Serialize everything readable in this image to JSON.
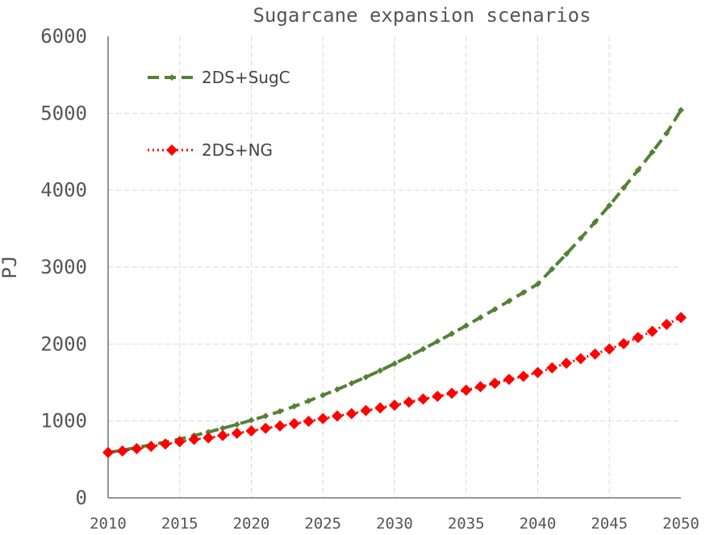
{
  "chart_data": {
    "type": "line",
    "title": "Sugarcane expansion scenarios",
    "xlabel": "",
    "ylabel": "PJ",
    "xlim": [
      2010,
      2050
    ],
    "ylim": [
      0,
      6000
    ],
    "xticks": [
      2010,
      2015,
      2020,
      2025,
      2030,
      2035,
      2040,
      2045,
      2050
    ],
    "yticks": [
      0,
      1000,
      2000,
      3000,
      4000,
      5000,
      6000
    ],
    "grid": true,
    "legend_position": "top-left",
    "x": [
      2010,
      2011,
      2012,
      2013,
      2014,
      2015,
      2016,
      2017,
      2018,
      2019,
      2020,
      2021,
      2022,
      2023,
      2024,
      2025,
      2026,
      2027,
      2028,
      2029,
      2030,
      2031,
      2032,
      2033,
      2034,
      2035,
      2036,
      2037,
      2038,
      2039,
      2040,
      2041,
      2042,
      2043,
      2044,
      2045,
      2046,
      2047,
      2048,
      2049,
      2050
    ],
    "series": [
      {
        "name": "2DS+SugC",
        "color": "#548235",
        "style": "dashed",
        "marker": "small-diamond",
        "values": [
          590,
          620,
          655,
          690,
          725,
          765,
          810,
          855,
          905,
          955,
          1010,
          1065,
          1125,
          1190,
          1260,
          1335,
          1410,
          1490,
          1570,
          1655,
          1745,
          1840,
          1935,
          2035,
          2135,
          2240,
          2345,
          2450,
          2560,
          2670,
          2780,
          2975,
          3170,
          3375,
          3585,
          3800,
          4030,
          4260,
          4495,
          4740,
          5040
        ]
      },
      {
        "name": "2DS+NG",
        "color": "#ff0000",
        "style": "dotted",
        "marker": "diamond",
        "values": [
          590,
          610,
          640,
          670,
          700,
          730,
          760,
          780,
          810,
          840,
          870,
          905,
          935,
          965,
          995,
          1030,
          1065,
          1095,
          1135,
          1170,
          1205,
          1245,
          1285,
          1320,
          1360,
          1400,
          1445,
          1490,
          1540,
          1580,
          1630,
          1690,
          1750,
          1810,
          1870,
          1935,
          2005,
          2085,
          2165,
          2255,
          2345
        ]
      }
    ]
  }
}
